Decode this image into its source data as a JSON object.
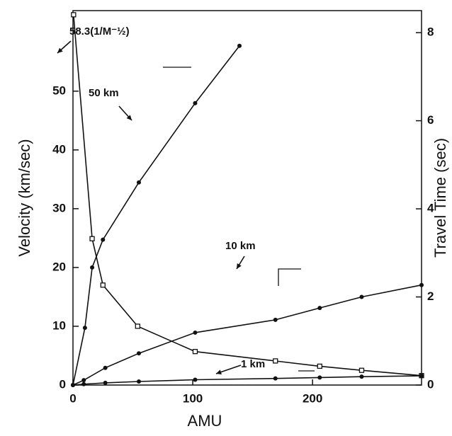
{
  "chart_data": {
    "type": "line",
    "x_label": "AMU",
    "y_label": "Velocity (km/sec)",
    "y2_label": "Travel Time (sec)",
    "xlim": [
      0,
      291
    ],
    "xticks": [
      0,
      100,
      200
    ],
    "ylim": [
      0,
      63.7
    ],
    "yticks": [
      0,
      10,
      20,
      30,
      40,
      50
    ],
    "y2lim": [
      0,
      8.5
    ],
    "y2ticks": [
      0,
      2,
      4,
      6,
      8
    ],
    "annotations": [
      "58.3(1/M⁻½)",
      "50 km",
      "10 km",
      "1 km"
    ],
    "series": [
      {
        "name": "velocity",
        "color": "#111111",
        "marker": "square",
        "x": [
          0.5,
          16,
          25,
          54,
          102,
          169,
          206,
          241,
          291
        ],
        "values": [
          63,
          24.9,
          17,
          10,
          5.7,
          4.1,
          3.2,
          2.5,
          1.6
        ]
      },
      {
        "name": "50 km",
        "color": "#111111",
        "marker": "circle",
        "axis": "y2",
        "x": [
          0,
          10,
          16,
          25,
          55,
          102,
          139
        ],
        "values": [
          0,
          1.3,
          2.67,
          3.3,
          4.6,
          6.4,
          7.7
        ]
      },
      {
        "name": "10 km",
        "color": "#111111",
        "marker": "circle",
        "axis": "y2",
        "x": [
          0,
          9,
          27,
          55,
          102,
          169,
          206,
          241,
          291
        ],
        "values": [
          0,
          0.11,
          0.39,
          0.72,
          1.19,
          1.48,
          1.75,
          2.0,
          2.27
        ]
      },
      {
        "name": "1 km",
        "color": "#111111",
        "marker": "circle",
        "axis": "y2",
        "x": [
          0,
          9,
          27,
          55,
          102,
          169,
          206,
          241,
          291
        ],
        "values": [
          0,
          0.02,
          0.05,
          0.08,
          0.12,
          0.15,
          0.17,
          0.19,
          0.21
        ]
      }
    ]
  }
}
